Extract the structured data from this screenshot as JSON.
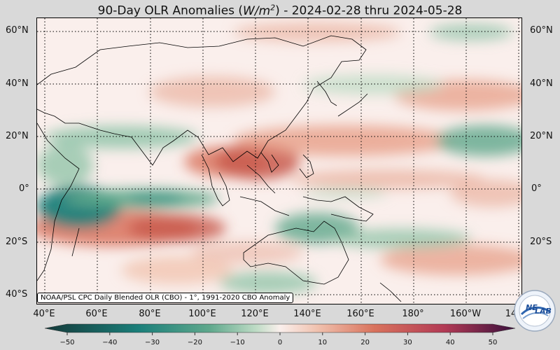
{
  "title": {
    "prefix": "90-Day OLR Anomalies (",
    "units_base": "W/m",
    "units_exp": "2",
    "suffix": ") - 2024-02-28 thru 2024-05-28"
  },
  "lat_labels": [
    "60°N",
    "40°N",
    "20°N",
    "0°",
    "20°S",
    "40°S"
  ],
  "lon_labels": [
    "40°E",
    "60°E",
    "80°E",
    "100°E",
    "120°E",
    "140°E",
    "160°E",
    "180°",
    "160°W",
    "14"
  ],
  "credit": "NOAA/PSL CPC Daily Blended OLR (CBO) - 1°, 1991-2020 CBO Anomaly",
  "colorbar": {
    "ticks": [
      "−50",
      "−40",
      "−30",
      "−20",
      "−10",
      "0",
      "10",
      "20",
      "30",
      "40",
      "50"
    ],
    "min": -50,
    "max": 50,
    "colors": {
      "neg_extreme": "#143a3a",
      "neg_strong": "#1b7f7a",
      "neg_mid": "#5fa88c",
      "neg_weak": "#bfdcc6",
      "zero": "#faefec",
      "pos_weak": "#f0c1ae",
      "pos_mid": "#d9735d",
      "pos_strong": "#b23a55",
      "pos_extreme": "#3a0f3c"
    }
  },
  "logo": {
    "text1": "NE",
    "text2": "LAB"
  }
}
